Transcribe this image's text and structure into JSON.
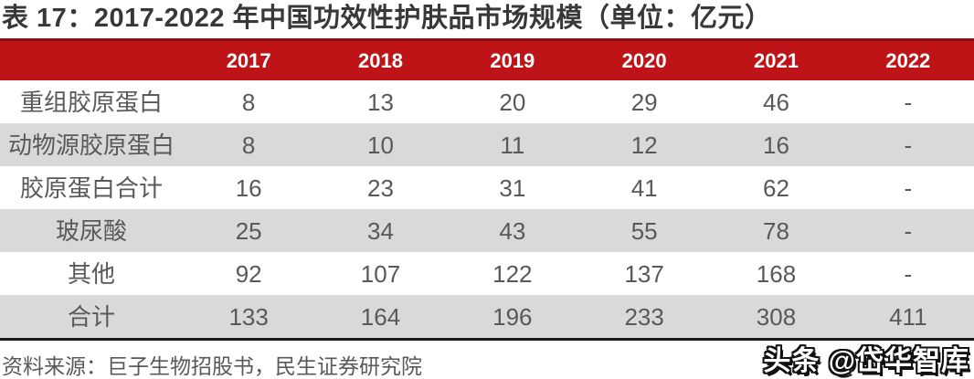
{
  "title": "表 17：2017-2022 年中国功效性护肤品市场规模（单位：亿元）",
  "chart_data": {
    "type": "table",
    "title": "表 17：2017-2022 年中国功效性护肤品市场规模（单位：亿元）",
    "unit": "亿元",
    "columns": [
      "2017",
      "2018",
      "2019",
      "2020",
      "2021",
      "2022"
    ],
    "rows": [
      {
        "label": "重组胶原蛋白",
        "values": [
          "8",
          "13",
          "20",
          "29",
          "46",
          "-"
        ]
      },
      {
        "label": "动物源胶原蛋白",
        "values": [
          "8",
          "10",
          "11",
          "12",
          "16",
          "-"
        ]
      },
      {
        "label": "胶原蛋白合计",
        "values": [
          "16",
          "23",
          "31",
          "41",
          "62",
          "-"
        ]
      },
      {
        "label": "玻尿酸",
        "values": [
          "25",
          "34",
          "43",
          "55",
          "78",
          "-"
        ]
      },
      {
        "label": "其他",
        "values": [
          "92",
          "107",
          "122",
          "137",
          "168",
          "-"
        ]
      },
      {
        "label": "合计",
        "values": [
          "133",
          "164",
          "196",
          "233",
          "308",
          "411"
        ]
      }
    ]
  },
  "footer": {
    "source": "资料来源：巨子生物招股书，民生证券研究院"
  },
  "watermark": {
    "text": "头条 @岱华智库"
  },
  "colors": {
    "header_red": "#be1418",
    "header_top_line": "#851114",
    "row_alt_gray": "#d9d9d9",
    "body_text": "#595959",
    "title_text": "#383838",
    "table_bottom_line": "#1a1a1a"
  }
}
